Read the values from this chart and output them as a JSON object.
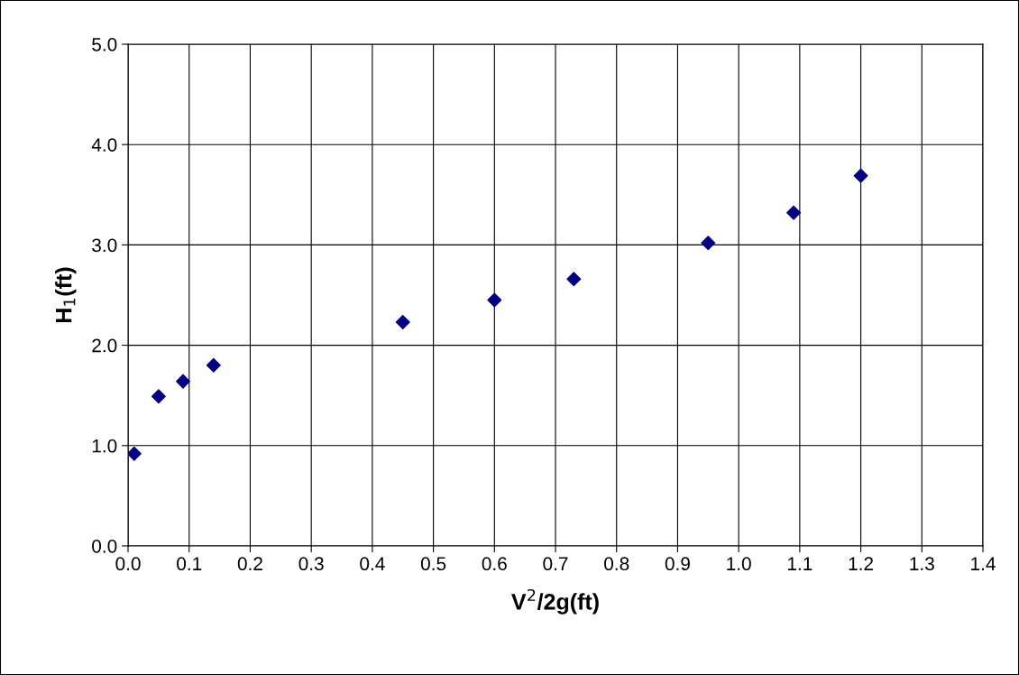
{
  "chart_data": {
    "type": "scatter",
    "xlabel": "V$^{2}$/2g(ft)",
    "ylabel": "H$_{1}$(ft)",
    "x": [
      0.01,
      0.05,
      0.09,
      0.14,
      0.45,
      0.6,
      0.73,
      0.95,
      1.09,
      1.2
    ],
    "series": [
      {
        "color": "#000080",
        "values": [
          0.92,
          1.49,
          1.64,
          1.8,
          2.23,
          2.45,
          2.66,
          3.02,
          3.32,
          3.69
        ]
      }
    ],
    "marker": "diamond",
    "grid": true,
    "xlim": [
      0,
      1.4
    ],
    "xticks": [
      {
        "value": 0,
        "label": "0.0"
      },
      {
        "value": 0.1,
        "label": "0.1"
      },
      {
        "value": 0.2,
        "label": "0.2"
      },
      {
        "value": 0.3,
        "label": "0.3"
      },
      {
        "value": 0.4,
        "label": "0.4"
      },
      {
        "value": 0.5,
        "label": "0.5"
      },
      {
        "value": 0.6,
        "label": "0.6"
      },
      {
        "value": 0.7,
        "label": "0.7"
      },
      {
        "value": 0.8,
        "label": "0.8"
      },
      {
        "value": 0.9,
        "label": "0.9"
      },
      {
        "value": 1,
        "label": "1.0"
      },
      {
        "value": 1.1,
        "label": "1.1"
      },
      {
        "value": 1.2,
        "label": "1.2"
      },
      {
        "value": 1.3,
        "label": "1.3"
      },
      {
        "value": 1.4,
        "label": "1.4"
      }
    ],
    "ylim": [
      0,
      5
    ],
    "yticks": [
      {
        "value": 0,
        "label": "0.0"
      },
      {
        "value": 1,
        "label": "1.0"
      },
      {
        "value": 2,
        "label": "2.0"
      },
      {
        "value": 3,
        "label": "3.0"
      },
      {
        "value": 4,
        "label": "4.0"
      },
      {
        "value": 5,
        "label": "5.0"
      }
    ]
  }
}
